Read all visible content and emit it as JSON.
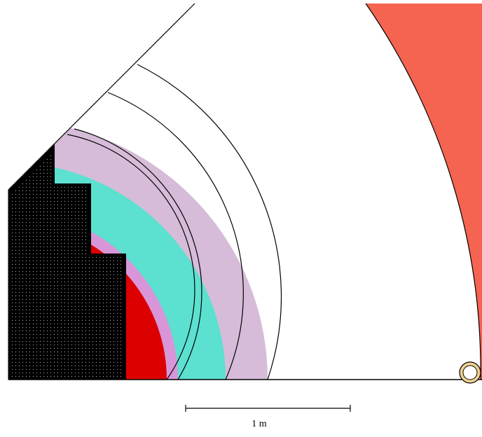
{
  "scale_bar": {
    "label": "1 m"
  },
  "colors": {
    "background": "#ffffff",
    "core": "#000000",
    "core_dots": "#bbbbbb",
    "inner_shield": "#dd0000",
    "thin_shell": "#d896d8",
    "teal_ring": "#5ce0d0",
    "lavender_ring": "#d6bcd8",
    "outer_region": "#f46450",
    "small_ring": "#f0d090",
    "outline": "#000000"
  }
}
